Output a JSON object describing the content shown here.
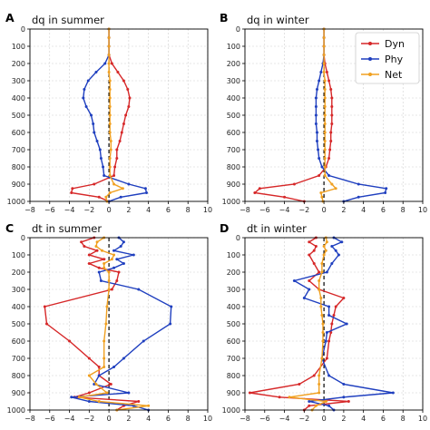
{
  "chart_data": [
    {
      "type": "line",
      "panel_label": "A",
      "title": "dq in summer",
      "xlim": [
        -8,
        10
      ],
      "ylim": [
        1000,
        0
      ],
      "xticks": [
        -8,
        -6,
        -4,
        -2,
        0,
        2,
        4,
        6,
        8,
        10
      ],
      "yticks": [
        0,
        100,
        200,
        300,
        400,
        500,
        600,
        700,
        800,
        900,
        1000
      ],
      "grid": true,
      "zero_line": "dashed vertical at x=0",
      "legend": false,
      "y": [
        0,
        50,
        100,
        150,
        200,
        250,
        300,
        350,
        400,
        450,
        500,
        550,
        600,
        650,
        700,
        750,
        800,
        850,
        900,
        925,
        950,
        975,
        1000
      ],
      "series": [
        {
          "name": "Dyn",
          "color": "#d62728",
          "values": [
            0,
            0,
            0,
            0,
            0.3,
            0.9,
            1.5,
            1.9,
            2.1,
            2.0,
            1.7,
            1.5,
            1.3,
            1.1,
            0.8,
            0.8,
            0.6,
            0.5,
            -1.5,
            -3.7,
            -3.8,
            -1.0,
            0
          ]
        },
        {
          "name": "Phy",
          "color": "#1f3fbf",
          "values": [
            0,
            0,
            0,
            0,
            -0.4,
            -1.3,
            -2.1,
            -2.5,
            -2.6,
            -2.3,
            -1.8,
            -1.6,
            -1.5,
            -1.2,
            -0.9,
            -0.8,
            -0.6,
            -0.5,
            2.0,
            3.7,
            3.8,
            1.2,
            0
          ]
        },
        {
          "name": "Net",
          "color": "#f0a020",
          "values": [
            0,
            0,
            0,
            0,
            0,
            0,
            0.1,
            0.1,
            0.1,
            0.1,
            0.1,
            0.1,
            0.1,
            0.2,
            0.2,
            0.1,
            0.1,
            0.1,
            0.5,
            1.4,
            0.1,
            -0.3,
            -0.2
          ]
        }
      ]
    },
    {
      "type": "line",
      "panel_label": "B",
      "title": "dq in winter",
      "xlim": [
        -8,
        10
      ],
      "ylim": [
        1000,
        0
      ],
      "xticks": [
        -8,
        -6,
        -4,
        -2,
        0,
        2,
        4,
        6,
        8,
        10
      ],
      "yticks": [
        0,
        100,
        200,
        300,
        400,
        500,
        600,
        700,
        800,
        900,
        1000
      ],
      "grid": true,
      "zero_line": "dashed vertical at x=0",
      "legend": true,
      "legend_position": "upper right",
      "y": [
        0,
        50,
        100,
        150,
        200,
        250,
        300,
        350,
        400,
        450,
        500,
        550,
        600,
        650,
        700,
        750,
        800,
        850,
        900,
        925,
        950,
        975,
        1000
      ],
      "series": [
        {
          "name": "Dyn",
          "color": "#d62728",
          "values": [
            0,
            0,
            0,
            0,
            0.1,
            0.3,
            0.5,
            0.7,
            0.8,
            0.8,
            0.8,
            0.8,
            0.7,
            0.7,
            0.6,
            0.5,
            0.2,
            -0.5,
            -3.0,
            -6.5,
            -7.0,
            -4.0,
            -2.0
          ]
        },
        {
          "name": "Phy",
          "color": "#1f3fbf",
          "values": [
            0,
            0,
            0,
            0,
            -0.1,
            -0.3,
            -0.5,
            -0.7,
            -0.8,
            -0.8,
            -0.8,
            -0.8,
            -0.7,
            -0.7,
            -0.6,
            -0.5,
            -0.2,
            0.5,
            3.5,
            6.3,
            6.2,
            3.5,
            2.0
          ]
        },
        {
          "name": "Net",
          "color": "#f0a020",
          "values": [
            0,
            0,
            0,
            0,
            0,
            0,
            0.1,
            0.1,
            0.1,
            0.1,
            0.1,
            0.1,
            0.1,
            0.1,
            0.1,
            0.1,
            0.1,
            0.1,
            0.8,
            1.2,
            -0.3,
            -0.2,
            -0.1
          ]
        }
      ]
    },
    {
      "type": "line",
      "panel_label": "C",
      "title": "dt in summer",
      "xlim": [
        -8,
        10
      ],
      "ylim": [
        1000,
        0
      ],
      "xticks": [
        -8,
        -6,
        -4,
        -2,
        0,
        2,
        4,
        6,
        8,
        10
      ],
      "yticks": [
        0,
        100,
        200,
        300,
        400,
        500,
        600,
        700,
        800,
        900,
        1000
      ],
      "grid": true,
      "zero_line": "dashed vertical at x=0",
      "legend": false,
      "y": [
        0,
        25,
        50,
        75,
        100,
        125,
        150,
        175,
        200,
        250,
        300,
        400,
        500,
        600,
        700,
        750,
        800,
        850,
        900,
        925,
        950,
        975,
        1000
      ],
      "series": [
        {
          "name": "Dyn",
          "color": "#d62728",
          "values": [
            -1.5,
            -2.8,
            -2.5,
            -1.2,
            -2.0,
            -0.5,
            -2.0,
            -1.0,
            1.0,
            0.8,
            0.3,
            -6.5,
            -6.3,
            -4.0,
            -2.0,
            -1.0,
            -1.0,
            0.2,
            -2.0,
            -3.5,
            3.0,
            1.5,
            0.8
          ]
        },
        {
          "name": "Phy",
          "color": "#1f3fbf",
          "values": [
            1.0,
            1.5,
            1.2,
            0.5,
            2.5,
            0.8,
            1.5,
            0.5,
            -1.0,
            -0.8,
            3.0,
            6.3,
            6.2,
            3.5,
            1.5,
            0.5,
            -1.0,
            -1.5,
            2.0,
            -3.8,
            -2.0,
            2.5,
            4.0
          ]
        },
        {
          "name": "Net",
          "color": "#f0a020",
          "values": [
            -0.5,
            -1.2,
            -1.3,
            -0.7,
            0.5,
            0.3,
            -0.5,
            -0.5,
            0,
            0,
            0,
            -0.2,
            -0.3,
            -0.5,
            -0.5,
            -0.5,
            -2.0,
            -1.3,
            -0.2,
            -3.0,
            -1.0,
            4.0,
            0.8
          ]
        }
      ]
    },
    {
      "type": "line",
      "panel_label": "D",
      "title": "dt in winter",
      "xlim": [
        -8,
        10
      ],
      "ylim": [
        1000,
        0
      ],
      "xticks": [
        -8,
        -6,
        -4,
        -2,
        0,
        2,
        4,
        6,
        8,
        10
      ],
      "yticks": [
        0,
        100,
        200,
        300,
        400,
        500,
        600,
        700,
        800,
        900,
        1000
      ],
      "grid": true,
      "zero_line": "dashed vertical at x=0",
      "legend": false,
      "y": [
        0,
        25,
        50,
        75,
        100,
        150,
        200,
        250,
        300,
        350,
        400,
        450,
        500,
        550,
        600,
        700,
        800,
        850,
        900,
        925,
        950,
        975,
        1000
      ],
      "series": [
        {
          "name": "Dyn",
          "color": "#d62728",
          "values": [
            -0.8,
            -1.5,
            -0.8,
            -1.0,
            -1.5,
            -1.0,
            -0.5,
            -1.5,
            -0.5,
            2.0,
            1.2,
            1.0,
            0.8,
            0.7,
            0.5,
            0.3,
            -1.0,
            -2.5,
            -7.5,
            -4.5,
            2.5,
            -1.5,
            -2.0
          ]
        },
        {
          "name": "Phy",
          "color": "#1f3fbf",
          "values": [
            1.0,
            1.8,
            0.8,
            1.2,
            1.5,
            0.8,
            0.3,
            -3.0,
            -1.5,
            -2.0,
            0.5,
            0.5,
            2.3,
            0.3,
            0.2,
            -0.2,
            0.5,
            2.0,
            7.0,
            2.0,
            -1.5,
            0.5,
            1.0
          ]
        },
        {
          "name": "Net",
          "color": "#f0a020",
          "values": [
            0.2,
            0.3,
            0,
            0.2,
            0,
            -0.2,
            -0.2,
            -0.5,
            -0.5,
            -0.3,
            -0.3,
            -0.2,
            -0.1,
            -0.1,
            -0.1,
            -0.2,
            -0.5,
            -0.5,
            -0.5,
            -3.5,
            0.2,
            -0.8,
            -1.2
          ]
        }
      ]
    }
  ],
  "legend": {
    "entries": [
      {
        "label": "Dyn",
        "color": "#d62728"
      },
      {
        "label": "Phy",
        "color": "#1f3fbf"
      },
      {
        "label": "Net",
        "color": "#f0a020"
      }
    ]
  }
}
